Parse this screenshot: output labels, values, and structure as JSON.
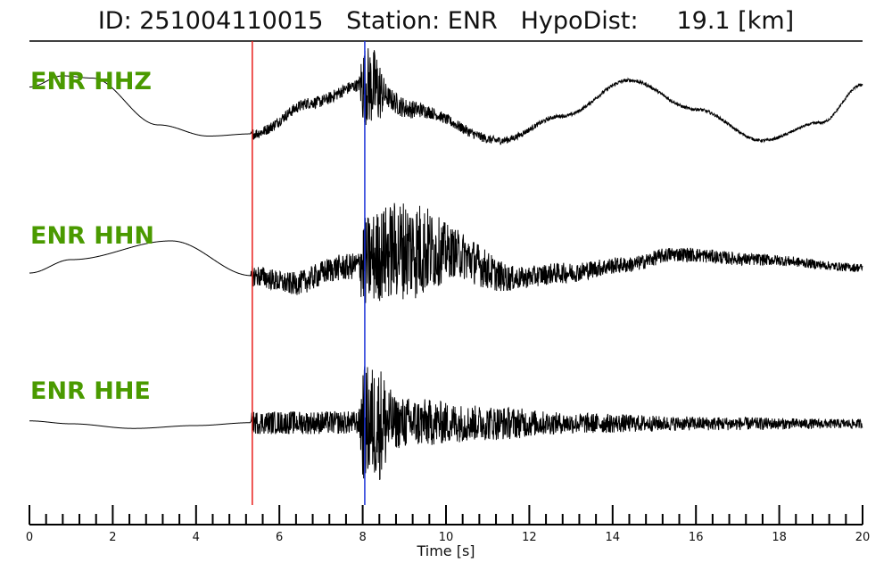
{
  "header": {
    "event_id": "251004110015",
    "station": "ENR",
    "hypo_dist": "19.1",
    "title": "ID: 251004110015   Station: ENR   HypoDist:     19.1 [km]"
  },
  "colors": {
    "label": "#4a9a00",
    "trace": "#000000",
    "p_pick": "#e8201c",
    "s_pick": "#1a32d8"
  },
  "chart_data": {
    "type": "line",
    "title": "ID: 251004110015   Station: ENR   HypoDist:     19.1 [km]",
    "xlabel": "Time [s]",
    "ylabel": "",
    "xlim": [
      0,
      20
    ],
    "x_ticks": [
      0,
      2,
      4,
      6,
      8,
      10,
      12,
      14,
      16,
      18,
      20
    ],
    "minor_tick_step": 0.4,
    "grid": false,
    "picks": [
      {
        "time": 5.35,
        "color": "#e8201c"
      },
      {
        "time": 8.05,
        "color": "#1a32d8"
      }
    ],
    "series": [
      {
        "name": "ENR HHZ",
        "trend": [
          [
            0,
            0.55
          ],
          [
            0.8,
            0.8
          ],
          [
            1.5,
            0.75
          ],
          [
            3.1,
            -0.3
          ],
          [
            4.3,
            -0.55
          ],
          [
            5.35,
            -0.5
          ],
          [
            6.8,
            0.2
          ],
          [
            8.0,
            0.6
          ],
          [
            9.2,
            0.05
          ],
          [
            11.3,
            -0.65
          ],
          [
            12.8,
            -0.1
          ],
          [
            14.4,
            0.7
          ],
          [
            16.0,
            0.05
          ],
          [
            17.6,
            -0.65
          ],
          [
            19.0,
            -0.25
          ],
          [
            20.0,
            0.6
          ]
        ],
        "noise": [
          [
            0,
            0.0
          ],
          [
            5.3,
            0.0
          ],
          [
            5.35,
            0.12
          ],
          [
            7.9,
            0.14
          ],
          [
            8.0,
            0.9
          ],
          [
            8.3,
            0.9
          ],
          [
            8.6,
            0.25
          ],
          [
            10.0,
            0.12
          ],
          [
            13.0,
            0.04
          ],
          [
            20.0,
            0.03
          ]
        ]
      },
      {
        "name": "ENR HHN",
        "trend": [
          [
            0,
            -0.15
          ],
          [
            1.0,
            0.1
          ],
          [
            3.4,
            0.45
          ],
          [
            5.35,
            -0.2
          ],
          [
            6.3,
            -0.35
          ],
          [
            7.5,
            -0.05
          ],
          [
            9.0,
            0.3
          ],
          [
            10.0,
            0.25
          ],
          [
            11.6,
            -0.25
          ],
          [
            12.8,
            -0.15
          ],
          [
            14.3,
            0.0
          ],
          [
            15.5,
            0.2
          ],
          [
            17.5,
            0.1
          ],
          [
            20.0,
            -0.05
          ]
        ],
        "noise": [
          [
            0,
            0.0
          ],
          [
            5.3,
            0.0
          ],
          [
            5.35,
            0.2
          ],
          [
            7.9,
            0.25
          ],
          [
            8.0,
            0.85
          ],
          [
            9.2,
            0.95
          ],
          [
            10.3,
            0.45
          ],
          [
            12.0,
            0.2
          ],
          [
            15.0,
            0.14
          ],
          [
            20.0,
            0.08
          ]
        ]
      },
      {
        "name": "ENR HHE",
        "trend": [
          [
            0,
            0.05
          ],
          [
            1.0,
            0.0
          ],
          [
            2.5,
            -0.08
          ],
          [
            4.0,
            -0.03
          ],
          [
            5.35,
            0.02
          ],
          [
            20.0,
            0.0
          ]
        ],
        "noise": [
          [
            0,
            0.0
          ],
          [
            5.3,
            0.0
          ],
          [
            5.35,
            0.2
          ],
          [
            7.9,
            0.2
          ],
          [
            8.0,
            1.0
          ],
          [
            8.4,
            1.0
          ],
          [
            8.8,
            0.45
          ],
          [
            11.0,
            0.3
          ],
          [
            13.0,
            0.18
          ],
          [
            16.0,
            0.12
          ],
          [
            20.0,
            0.08
          ]
        ]
      }
    ]
  }
}
